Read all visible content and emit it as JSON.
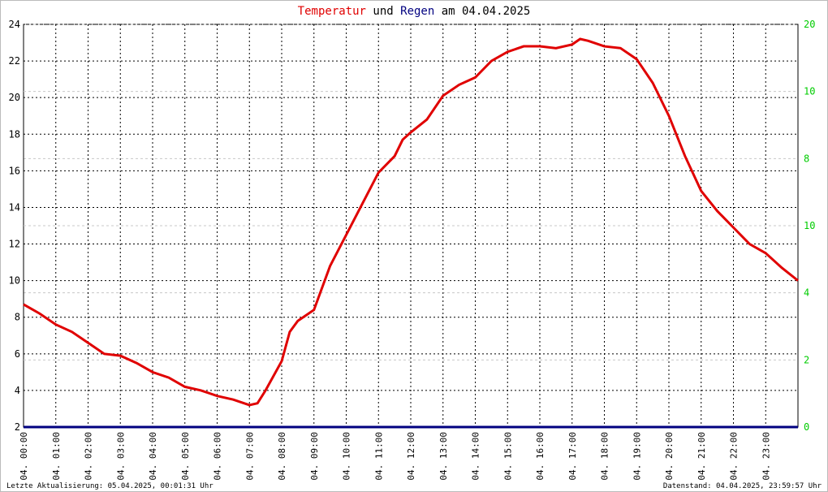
{
  "chart_data": {
    "type": "line",
    "title_parts": [
      "Temperatur",
      "und",
      "Regen",
      "am 04.04.2025"
    ],
    "footer_left": "Letzte Aktualisierung: 05.04.2025, 00:01:31 Uhr",
    "footer_right": "Datenstand: 04.04.2025, 23:59:57 Uhr",
    "xlim": [
      0,
      24
    ],
    "xticks": [
      {
        "value": 0,
        "label": "04. 00:00"
      },
      {
        "value": 1,
        "label": "04. 01:00"
      },
      {
        "value": 2,
        "label": "04. 02:00"
      },
      {
        "value": 3,
        "label": "04. 03:00"
      },
      {
        "value": 4,
        "label": "04. 04:00"
      },
      {
        "value": 5,
        "label": "04. 05:00"
      },
      {
        "value": 6,
        "label": "04. 06:00"
      },
      {
        "value": 7,
        "label": "04. 07:00"
      },
      {
        "value": 8,
        "label": "04. 08:00"
      },
      {
        "value": 9,
        "label": "04. 09:00"
      },
      {
        "value": 10,
        "label": "04. 10:00"
      },
      {
        "value": 11,
        "label": "04. 11:00"
      },
      {
        "value": 12,
        "label": "04. 12:00"
      },
      {
        "value": 13,
        "label": "04. 13:00"
      },
      {
        "value": 14,
        "label": "04. 14:00"
      },
      {
        "value": 15,
        "label": "04. 15:00"
      },
      {
        "value": 16,
        "label": "04. 16:00"
      },
      {
        "value": 17,
        "label": "04. 17:00"
      },
      {
        "value": 18,
        "label": "04. 18:00"
      },
      {
        "value": 19,
        "label": "04. 19:00"
      },
      {
        "value": 20,
        "label": "04. 20:00"
      },
      {
        "value": 21,
        "label": "04. 21:00"
      },
      {
        "value": 22,
        "label": "04. 22:00"
      },
      {
        "value": 23,
        "label": "04. 23:00"
      }
    ],
    "ylim": [
      2,
      24
    ],
    "yticks": [
      2,
      4,
      6,
      8,
      10,
      12,
      14,
      16,
      18,
      20,
      22,
      24
    ],
    "y2lim": [
      0,
      6
    ],
    "y2ticks": [
      {
        "value": 0,
        "label": "0"
      },
      {
        "value": 1,
        "label": "2"
      },
      {
        "value": 2,
        "label": "4"
      },
      {
        "value": 3,
        "label": "10"
      },
      {
        "value": 4,
        "label": "8"
      },
      {
        "value": 5,
        "label": "10"
      },
      {
        "value": 6,
        "label": "20"
      }
    ],
    "grid": true,
    "series": [
      {
        "name": "Temperatur",
        "color": "#e00000",
        "x": [
          0,
          0.5,
          1,
          1.5,
          2,
          2.5,
          3,
          3.5,
          4,
          4.5,
          5,
          5.5,
          6,
          6.5,
          7,
          7.25,
          7.5,
          8,
          8.25,
          8.5,
          9,
          9.25,
          9.5,
          10,
          10.5,
          11,
          11.5,
          11.75,
          12,
          12.5,
          13,
          13.5,
          14,
          14.5,
          15,
          15.5,
          16,
          16.5,
          17,
          17.25,
          17.5,
          18,
          18.5,
          19,
          19.5,
          20,
          20.5,
          21,
          21.5,
          22,
          22.5,
          23,
          23.5,
          24
        ],
        "values": [
          8.7,
          8.2,
          7.6,
          7.2,
          6.6,
          6.0,
          5.9,
          5.5,
          5.0,
          4.7,
          4.2,
          4.0,
          3.7,
          3.5,
          3.2,
          3.3,
          4.0,
          5.6,
          7.2,
          7.8,
          8.4,
          9.6,
          10.8,
          12.5,
          14.2,
          15.9,
          16.8,
          17.7,
          18.1,
          18.8,
          20.1,
          20.7,
          21.1,
          22.0,
          22.5,
          22.8,
          22.8,
          22.7,
          22.9,
          23.2,
          23.1,
          22.8,
          22.7,
          22.1,
          20.8,
          19.0,
          16.8,
          14.9,
          13.8,
          12.9,
          12.0,
          11.5,
          10.7,
          10.0
        ]
      },
      {
        "name": "Regen",
        "color": "#000080",
        "axis": "y2",
        "x": [
          0,
          24
        ],
        "values": [
          0,
          0
        ]
      }
    ]
  }
}
